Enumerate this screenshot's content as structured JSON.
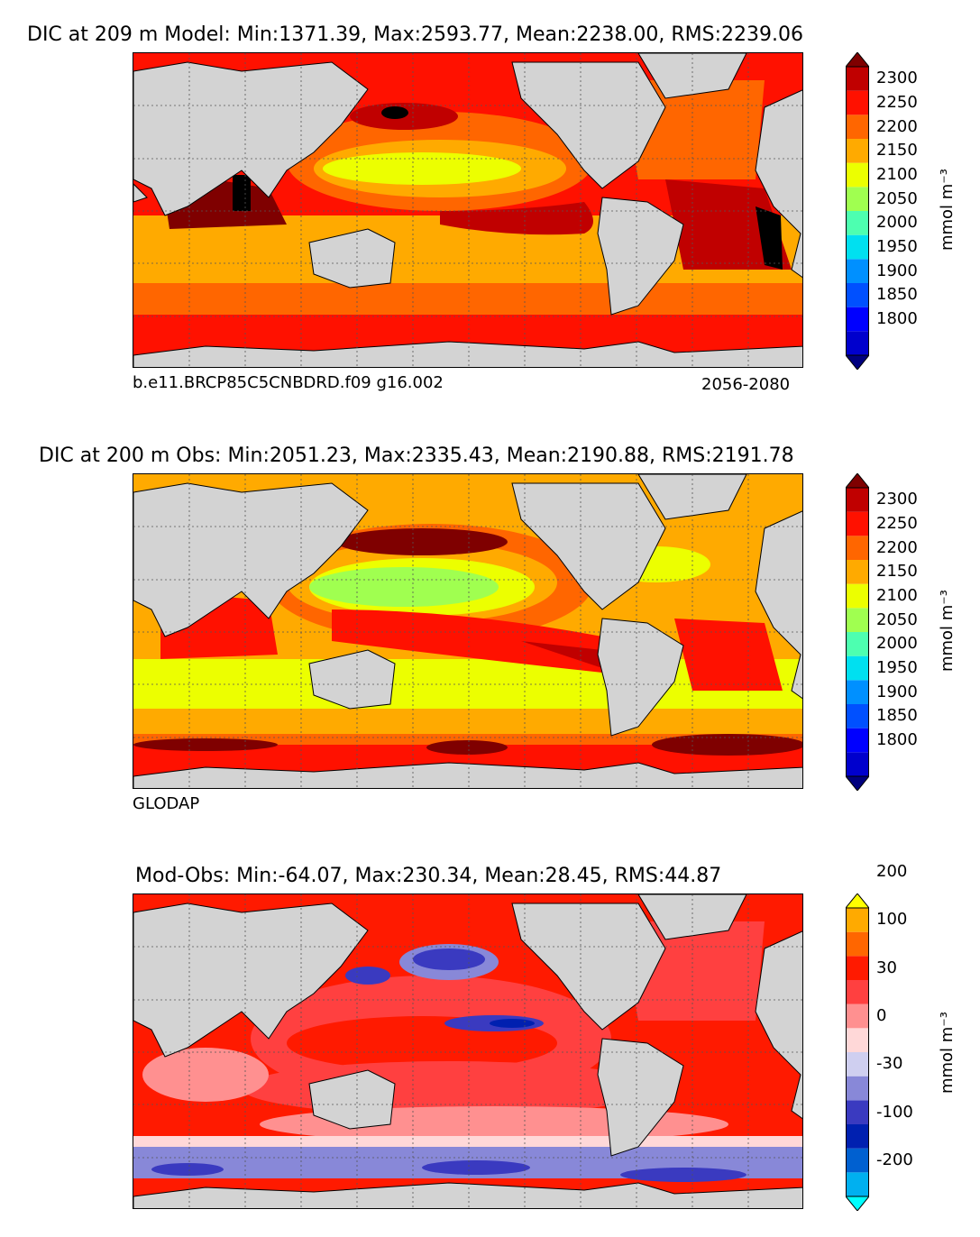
{
  "panels": [
    {
      "title": "DIC at 209 m Model: Min:1371.39, Max:2593.77, Mean:2238.00, RMS:2239.06",
      "left_caption": "b.e11.BRCP85C5CNBDRD.f09 g16.002",
      "right_caption": "2056-2080",
      "unit": "mmol m⁻³"
    },
    {
      "title": "DIC at 200 m Obs: Min:2051.23, Max:2335.43, Mean:2190.88, RMS:2191.78",
      "left_caption": "GLODAP",
      "right_caption": "",
      "unit": "mmol m⁻³"
    },
    {
      "title": "Mod-Obs: Min:-64.07, Max:230.34, Mean:28.45, RMS:44.87",
      "left_caption": "",
      "right_caption": "",
      "unit": "mmol m⁻³"
    }
  ],
  "colorbars": {
    "absolute": {
      "colors": [
        "#00007f",
        "#0000cd",
        "#0000ff",
        "#0050ff",
        "#0090ff",
        "#00e0f0",
        "#4dffb0",
        "#a0ff50",
        "#ecff00",
        "#ffaa00",
        "#ff6600",
        "#ff1100",
        "#c00000",
        "#7f0000"
      ],
      "labels": [
        "1800",
        "1850",
        "1900",
        "1950",
        "2000",
        "2050",
        "2100",
        "2150",
        "2200",
        "2250",
        "2300"
      ]
    },
    "difference": {
      "colors": [
        "#00ffff",
        "#00b0f0",
        "#0060d0",
        "#0020b0",
        "#3a3ac0",
        "#8888d8",
        "#cfcff0",
        "#ffd8d8",
        "#ff9090",
        "#ff4040",
        "#ff1a00",
        "#ff6600",
        "#ffaa00",
        "#ffff00"
      ],
      "labels": [
        "-200",
        "-100",
        "-30",
        "0",
        "30",
        "100",
        "200"
      ]
    }
  },
  "colors": {
    "land": "#d3d3d3",
    "coast": "#000000",
    "grid": "#555555"
  }
}
